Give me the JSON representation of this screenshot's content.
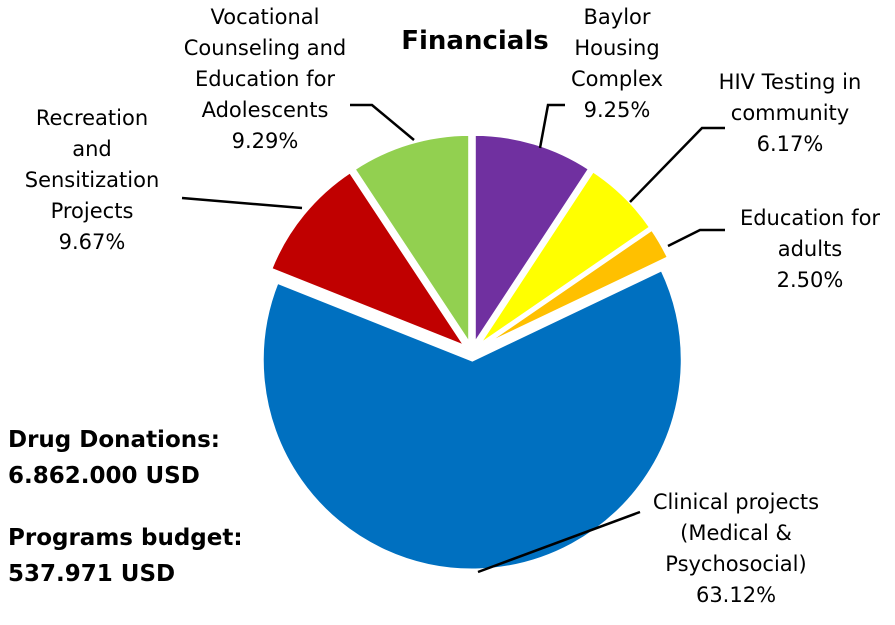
{
  "chart_data": {
    "type": "pie",
    "title": "Financials",
    "categories": [
      "Baylor\nHousing\nComplex",
      "HIV Testing in\ncommunity",
      "Education for\nadults",
      "Clinical projects\n(Medical &\nPsychosocial)",
      "Recreation\nand\nSensitization\nProjects",
      "Vocational\nCounseling and\nEducation for\nAdolescents"
    ],
    "values": [
      9.25,
      6.17,
      2.5,
      63.12,
      9.67,
      9.29
    ],
    "value_labels": [
      "9.25%",
      "6.17%",
      "2.50%",
      "63.12%",
      "9.67%",
      "9.29%"
    ],
    "colors": [
      "#7030a0",
      "#ffff00",
      "#ffc000",
      "#0070c0",
      "#c00000",
      "#92d050"
    ],
    "annotations": [
      "Drug Donations:\n6.862.000 USD",
      "Programs budget:\n537.971 USD"
    ]
  }
}
